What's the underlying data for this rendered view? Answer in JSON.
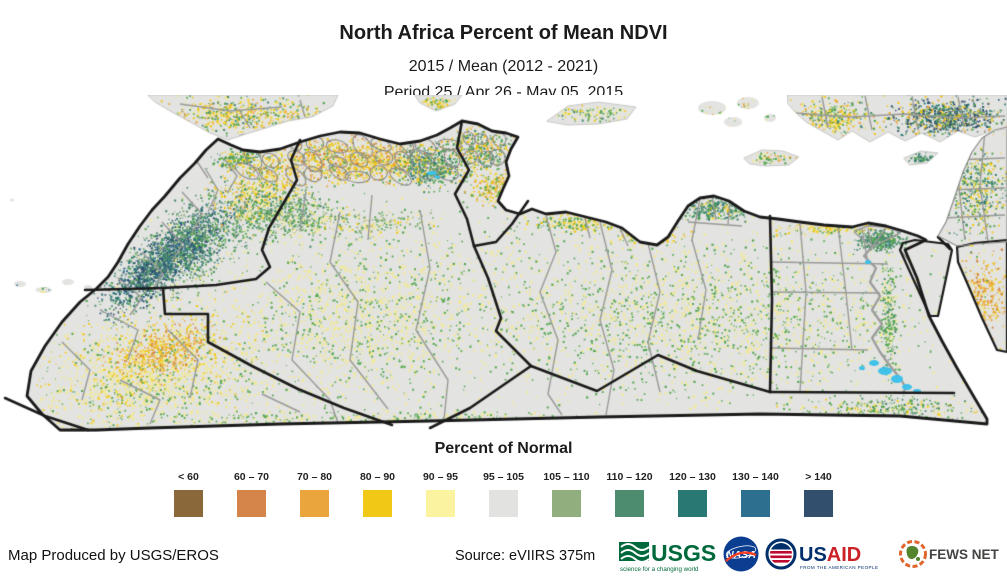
{
  "header": {
    "title": "North Africa Percent of Mean NDVI",
    "subtitle1": "2015 / Mean (2012 - 2021)",
    "subtitle2": "Period 25 / Apr 26 - May 05, 2015"
  },
  "legend": {
    "title": "Percent of Normal",
    "classes": [
      {
        "label": "< 60",
        "color": "#8A6839"
      },
      {
        "label": "60 – 70",
        "color": "#D6854A"
      },
      {
        "label": "70 – 80",
        "color": "#EAA63C"
      },
      {
        "label": "80 – 90",
        "color": "#F2C817"
      },
      {
        "label": "90 – 95",
        "color": "#FBF3A0"
      },
      {
        "label": "95 – 105",
        "color": "#E2E2E0"
      },
      {
        "label": "105 – 110",
        "color": "#91AF7E"
      },
      {
        "label": "110 – 120",
        "color": "#4D8C6E"
      },
      {
        "label": "120 – 130",
        "color": "#2A7874"
      },
      {
        "label": "130 – 140",
        "color": "#2D6F8E"
      },
      {
        "label": "> 140",
        "color": "#32506E"
      }
    ]
  },
  "map": {
    "sea": "#FFFFFF",
    "land": "#E3E3E1",
    "country_border": "#1A1A1A",
    "admin_border": "#9A9A98",
    "water": "#3FC1EA",
    "palette": {
      "brown": "#8A6839",
      "dark_orange": "#D07B35",
      "orange": "#E9A63C",
      "gold": "#F1C917",
      "pale_yellow": "#F3EA8F",
      "olive": "#91AF7E",
      "sea_green": "#4D8C6E",
      "teal": "#2A7874",
      "blue_teal": "#2D6F8E",
      "navy": "#32506E",
      "bright_green": "#54A750"
    }
  },
  "footer": {
    "produced_by": "Map Produced by USGS/EROS",
    "source": "Source: eVIIRS 375m",
    "logos": {
      "usgs": {
        "name": "USGS",
        "tagline": "science for a changing world"
      },
      "nasa": {
        "name": "NASA"
      },
      "usaid": {
        "us": "US",
        "aid": "AID",
        "tagline": "FROM THE AMERICAN PEOPLE"
      },
      "fewsnet": {
        "name": "FEWS NET"
      }
    }
  }
}
